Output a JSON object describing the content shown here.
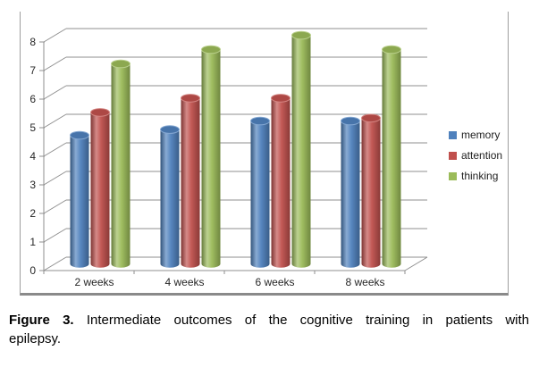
{
  "chart_data": {
    "type": "bar",
    "style": "3d-cylinder",
    "title": "",
    "xlabel": "",
    "ylabel": "",
    "categories": [
      "2 weeks",
      "4 weeks",
      "6 weeks",
      "8 weeks"
    ],
    "series": [
      {
        "name": "memory",
        "color": "#4F81BD",
        "values": [
          4.5,
          4.7,
          5.0,
          5.0
        ]
      },
      {
        "name": "attention",
        "color": "#C0504D",
        "values": [
          5.3,
          5.8,
          5.8,
          5.1
        ]
      },
      {
        "name": "thinking",
        "color": "#9BBB59",
        "values": [
          7.0,
          7.5,
          8.0,
          7.5
        ]
      }
    ],
    "ylim": [
      0,
      8
    ],
    "yticks": [
      0,
      1,
      2,
      3,
      4,
      5,
      6,
      7,
      8
    ],
    "grid": true,
    "legend_position": "right",
    "gridline_color": "#8f8f8f",
    "axis_text_color": "#262626"
  },
  "caption": {
    "label": "Figure 3.",
    "line1": "Intermediate outcomes of the cognitive training in patients with",
    "line2": "epilepsy."
  }
}
